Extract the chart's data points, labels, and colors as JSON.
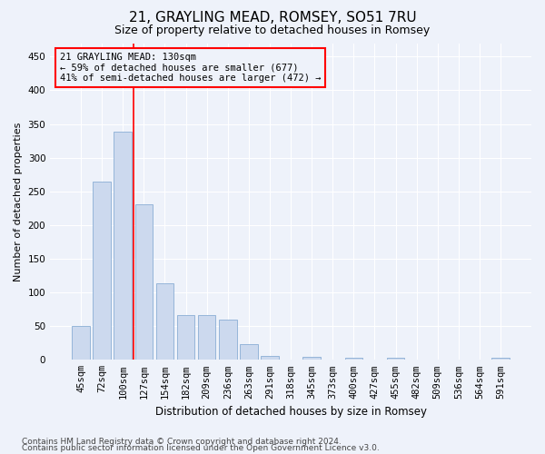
{
  "title1": "21, GRAYLING MEAD, ROMSEY, SO51 7RU",
  "title2": "Size of property relative to detached houses in Romsey",
  "xlabel": "Distribution of detached houses by size in Romsey",
  "ylabel": "Number of detached properties",
  "categories": [
    "45sqm",
    "72sqm",
    "100sqm",
    "127sqm",
    "154sqm",
    "182sqm",
    "209sqm",
    "236sqm",
    "263sqm",
    "291sqm",
    "318sqm",
    "345sqm",
    "373sqm",
    "400sqm",
    "427sqm",
    "455sqm",
    "482sqm",
    "509sqm",
    "536sqm",
    "564sqm",
    "591sqm"
  ],
  "values": [
    50,
    265,
    338,
    231,
    113,
    66,
    66,
    60,
    23,
    6,
    0,
    5,
    0,
    3,
    0,
    3,
    0,
    0,
    0,
    0,
    3
  ],
  "bar_color": "#ccd9ee",
  "bar_edge_color": "#8aadd4",
  "annotation_line1": "21 GRAYLING MEAD: 130sqm",
  "annotation_line2": "← 59% of detached houses are smaller (677)",
  "annotation_line3": "41% of semi-detached houses are larger (472) →",
  "ylim": [
    0,
    470
  ],
  "yticks": [
    0,
    50,
    100,
    150,
    200,
    250,
    300,
    350,
    400,
    450
  ],
  "footer_line1": "Contains HM Land Registry data © Crown copyright and database right 2024.",
  "footer_line2": "Contains public sector information licensed under the Open Government Licence v3.0.",
  "background_color": "#eef2fa",
  "grid_color": "#ffffff",
  "title1_fontsize": 11,
  "title2_fontsize": 9,
  "xlabel_fontsize": 8.5,
  "ylabel_fontsize": 8,
  "tick_fontsize": 7.5,
  "footer_fontsize": 6.5,
  "annot_fontsize": 7.5
}
